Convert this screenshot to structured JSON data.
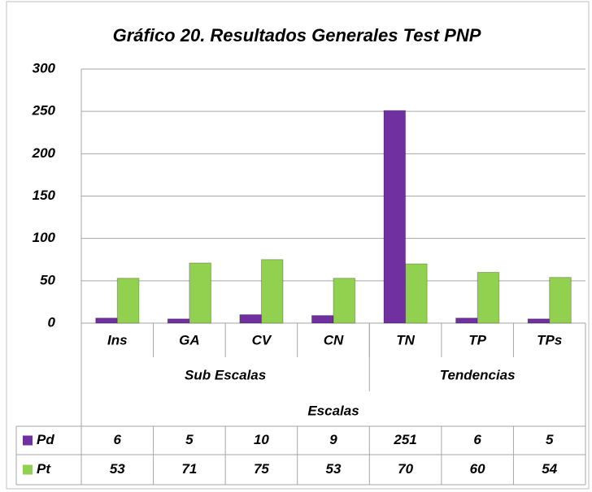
{
  "chart_data": {
    "type": "bar",
    "title": "Gráfico 20.  Resultados Generales Test PNP",
    "categories": [
      "Ins",
      "GA",
      "CV",
      "CN",
      "TN",
      "TP",
      "TPs"
    ],
    "groups": [
      {
        "name": "Sub Escalas",
        "members": [
          "Ins",
          "GA",
          "CV",
          "CN"
        ]
      },
      {
        "name": "Tendencias",
        "members": [
          "TN",
          "TP",
          "TPs"
        ]
      }
    ],
    "x_label": "Escalas",
    "series": [
      {
        "name": "Pd",
        "color": "#7030a0",
        "values": [
          6,
          5,
          10,
          9,
          251,
          6,
          5
        ]
      },
      {
        "name": "Pt",
        "color": "#92d050",
        "values": [
          53,
          71,
          75,
          53,
          70,
          60,
          54
        ]
      }
    ],
    "ylim": [
      0,
      300
    ],
    "yticks": [
      0,
      50,
      100,
      150,
      200,
      250,
      300
    ],
    "grid": true,
    "data_table": true
  }
}
